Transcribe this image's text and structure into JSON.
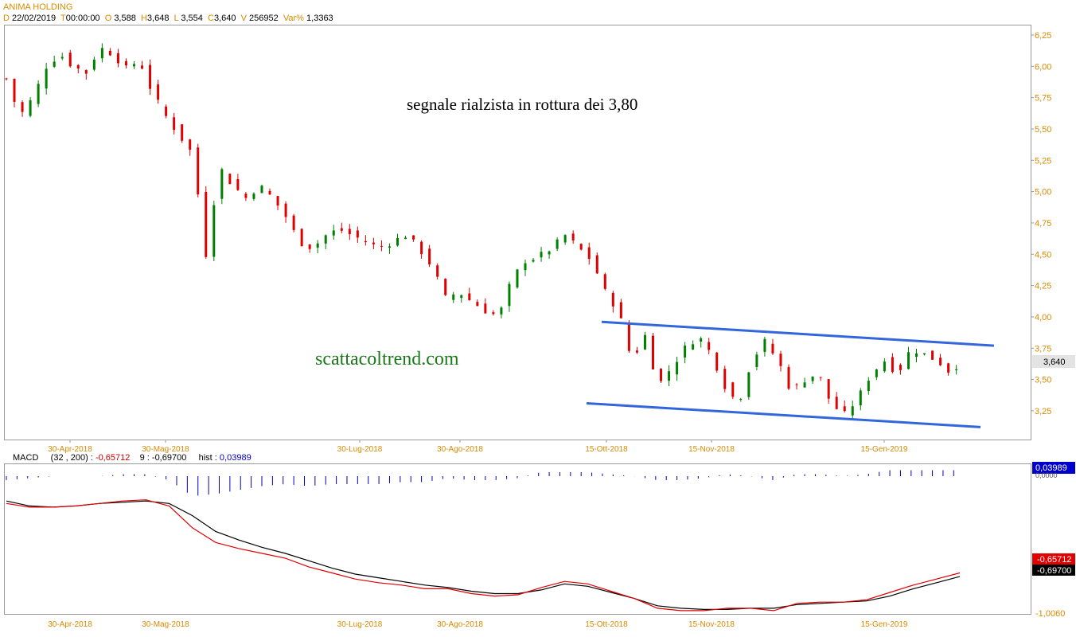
{
  "header": {
    "title": "ANIMA HOLDING",
    "d_label": "D",
    "date": "22/02/2019",
    "t_label": "T",
    "time": "00:00:00",
    "o_label": "O",
    "open": "3,588",
    "h_label": "H",
    "high": "3,648",
    "l_label": "L",
    "low": "3,554",
    "c_label": "C",
    "close": "3,640",
    "v_label": "V",
    "volume": "256952",
    "var_label": "Var%",
    "var": "1,3363"
  },
  "macd_header": {
    "name": "MACD",
    "params": "(32 , 200) :",
    "macd_value": "-0,65712",
    "signal_label": "9 :",
    "signal_value": "-0,69700",
    "hist_label": "hist :",
    "hist_value": "0,03989"
  },
  "annotations": {
    "signal_text": "segnale rialzista in rottura dei 3,80",
    "watermark": "scattacoltrend.com"
  },
  "price_badge": "3,640",
  "macd_badges": {
    "hist": "0,03989",
    "hist_axis": "0,0000",
    "macd": "-0,65712",
    "signal": "-0,69700",
    "axis_min": "-1,0060"
  },
  "colors": {
    "up": "#008000",
    "down": "#e00000",
    "channel": "#3366dd",
    "axis_text": "#d98a00",
    "macd_line": "#e00000",
    "signal_line": "#000000",
    "hist": "#0000c0",
    "watermark": "#1a7a1a"
  },
  "chart_data": {
    "type": "candlestick",
    "title": "ANIMA HOLDING",
    "y_ticks": [
      "6,25",
      "6,00",
      "5,75",
      "5,50",
      "5,25",
      "5,00",
      "4,75",
      "4,50",
      "4,25",
      "4,00",
      "3,75",
      "3,50",
      "3,25"
    ],
    "x_ticks": [
      "30-Apr-2018",
      "30-Mag-2018",
      "30-Lug-2018",
      "30-Ago-2018",
      "15-Ott-2018",
      "15-Nov-2018",
      "15-Gen-2019"
    ],
    "close_path": [
      [
        0,
        5.9
      ],
      [
        5,
        5.6
      ],
      [
        10,
        5.75
      ],
      [
        15,
        6.0
      ],
      [
        20,
        6.1
      ],
      [
        25,
        6.0
      ],
      [
        30,
        5.95
      ],
      [
        35,
        6.15
      ],
      [
        40,
        6.1
      ],
      [
        45,
        5.98
      ],
      [
        50,
        6.05
      ],
      [
        55,
        5.78
      ],
      [
        60,
        5.6
      ],
      [
        65,
        5.45
      ],
      [
        70,
        5.3
      ],
      [
        75,
        4.5
      ],
      [
        80,
        5.2
      ],
      [
        85,
        5.05
      ],
      [
        90,
        4.95
      ],
      [
        95,
        5.05
      ],
      [
        100,
        4.95
      ],
      [
        105,
        4.8
      ],
      [
        110,
        4.6
      ],
      [
        115,
        4.55
      ],
      [
        120,
        4.65
      ],
      [
        125,
        4.7
      ],
      [
        130,
        4.65
      ],
      [
        135,
        4.6
      ],
      [
        140,
        4.55
      ],
      [
        145,
        4.6
      ],
      [
        150,
        4.65
      ],
      [
        155,
        4.55
      ],
      [
        160,
        4.4
      ],
      [
        165,
        4.15
      ],
      [
        170,
        4.2
      ],
      [
        175,
        4.12
      ],
      [
        180,
        4.05
      ],
      [
        185,
        4.0
      ],
      [
        190,
        4.3
      ],
      [
        195,
        4.45
      ],
      [
        200,
        4.48
      ],
      [
        205,
        4.55
      ],
      [
        210,
        4.65
      ],
      [
        215,
        4.55
      ],
      [
        220,
        4.45
      ],
      [
        225,
        4.2
      ],
      [
        230,
        4.05
      ],
      [
        235,
        3.65
      ],
      [
        240,
        3.85
      ],
      [
        245,
        3.45
      ],
      [
        250,
        3.6
      ],
      [
        255,
        3.75
      ],
      [
        260,
        3.85
      ],
      [
        265,
        3.7
      ],
      [
        270,
        3.45
      ],
      [
        275,
        3.3
      ],
      [
        280,
        3.65
      ],
      [
        285,
        3.8
      ],
      [
        290,
        3.65
      ],
      [
        295,
        3.4
      ],
      [
        300,
        3.5
      ],
      [
        305,
        3.55
      ],
      [
        310,
        3.3
      ],
      [
        315,
        3.22
      ],
      [
        320,
        3.35
      ],
      [
        325,
        3.55
      ],
      [
        330,
        3.65
      ],
      [
        335,
        3.55
      ],
      [
        340,
        3.75
      ],
      [
        345,
        3.7
      ],
      [
        350,
        3.65
      ],
      [
        355,
        3.55
      ],
      [
        358,
        3.64
      ]
    ],
    "channel": {
      "upper": {
        "from": [
          0.0,
          3.96
        ],
        "to": [
          1.0,
          3.77
        ]
      },
      "lower": {
        "from": [
          0.0,
          3.31
        ],
        "to": [
          1.0,
          3.12
        ]
      }
    },
    "macd": {
      "macd_line": [
        -0.1,
        -0.13,
        -0.13,
        -0.12,
        -0.1,
        -0.08,
        -0.07,
        -0.12,
        -0.3,
        -0.42,
        -0.47,
        -0.51,
        -0.55,
        -0.62,
        -0.67,
        -0.72,
        -0.75,
        -0.77,
        -0.8,
        -0.8,
        -0.84,
        -0.86,
        -0.85,
        -0.79,
        -0.74,
        -0.76,
        -0.82,
        -0.88,
        -0.96,
        -0.98,
        -0.98,
        -0.96,
        -0.96,
        -0.98,
        -0.92,
        -0.91,
        -0.91,
        -0.89,
        -0.83,
        -0.77,
        -0.72,
        -0.67
      ],
      "signal_line": [
        -0.08,
        -0.12,
        -0.13,
        -0.12,
        -0.1,
        -0.09,
        -0.08,
        -0.1,
        -0.2,
        -0.33,
        -0.4,
        -0.46,
        -0.51,
        -0.57,
        -0.63,
        -0.68,
        -0.71,
        -0.74,
        -0.77,
        -0.79,
        -0.82,
        -0.84,
        -0.84,
        -0.81,
        -0.76,
        -0.78,
        -0.83,
        -0.88,
        -0.94,
        -0.96,
        -0.97,
        -0.97,
        -0.96,
        -0.96,
        -0.93,
        -0.92,
        -0.91,
        -0.9,
        -0.86,
        -0.8,
        -0.75,
        -0.7
      ],
      "hist_axis_min": -1.006
    }
  }
}
